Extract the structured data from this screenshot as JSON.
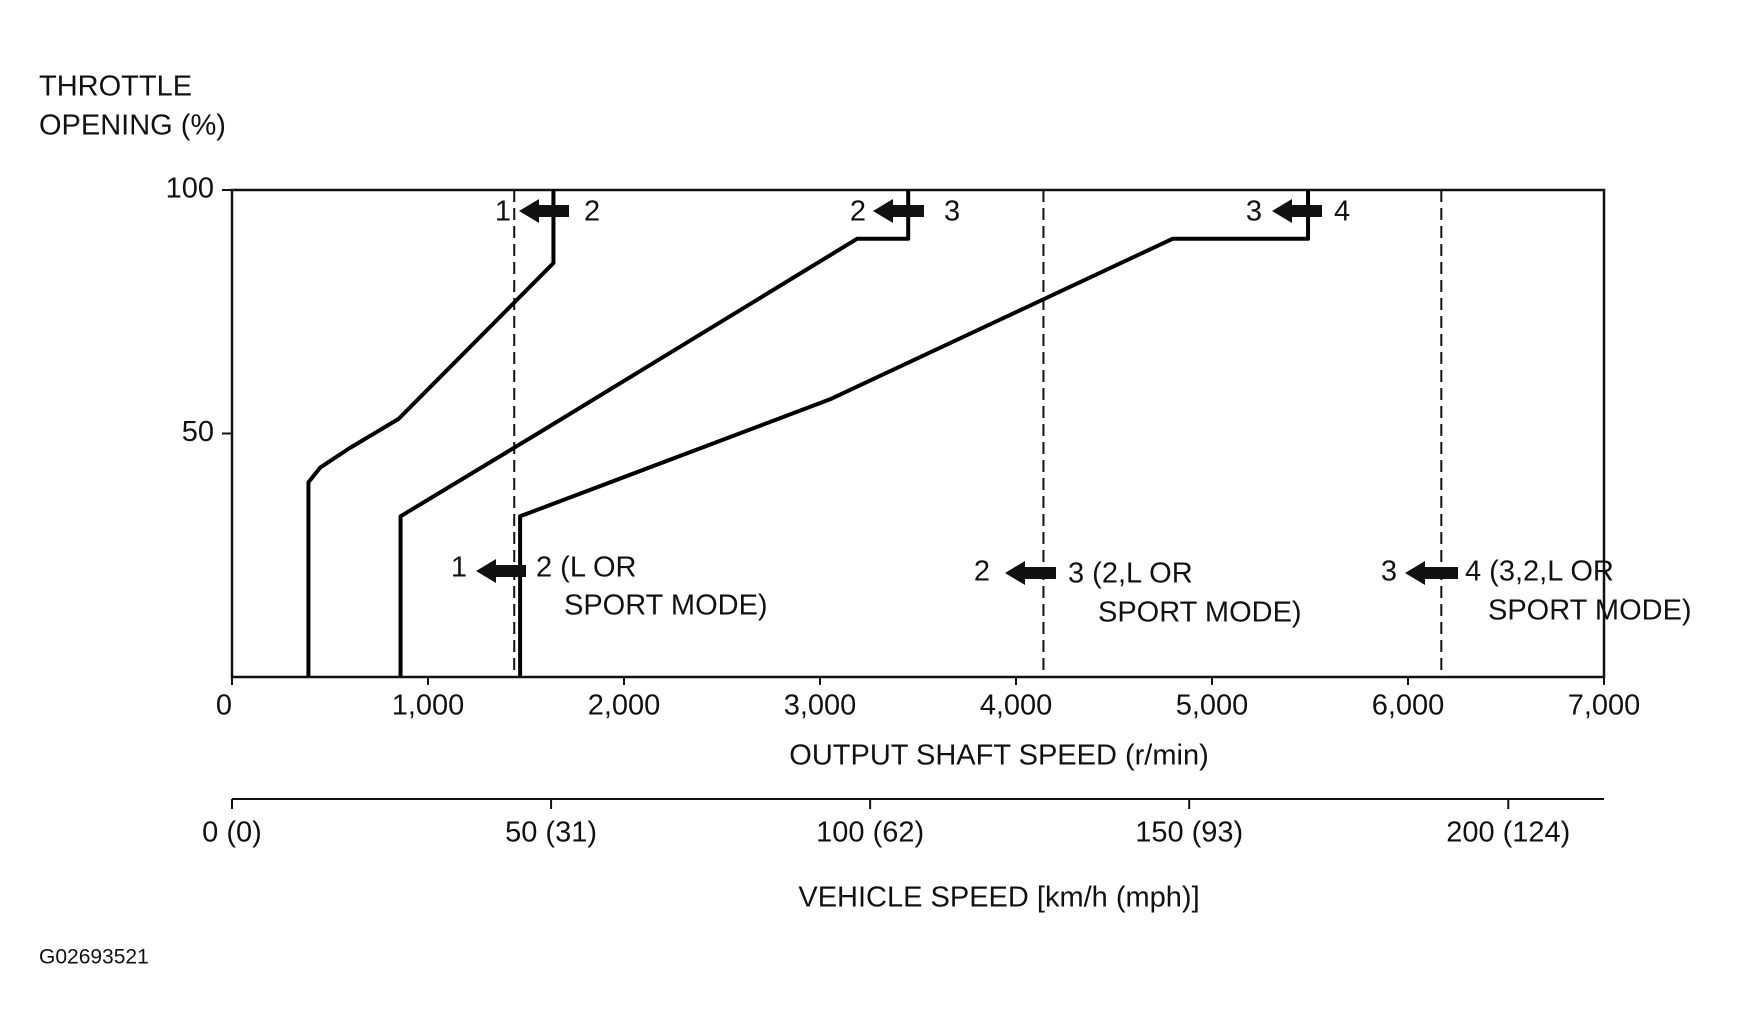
{
  "chart_data": {
    "type": "line",
    "y_label": [
      "THROTTLE",
      "OPENING (%)"
    ],
    "x_label": "OUTPUT SHAFT SPEED (r/min)",
    "x2_label": "VEHICLE SPEED [km/h (mph)]",
    "figure_id": "G02693521",
    "xlim": [
      0,
      7000
    ],
    "xticks": [
      0,
      {
        "value": 1000,
        "label": "1,000"
      },
      {
        "value": 2000,
        "label": "2,000"
      },
      {
        "value": 3000,
        "label": "3,000"
      },
      {
        "value": 4000,
        "label": "4,000"
      },
      {
        "value": 5000,
        "label": "5,000"
      },
      {
        "value": 6000,
        "label": "6,000"
      },
      {
        "value": 7000,
        "label": "7,000"
      }
    ],
    "ylim": [
      0,
      100
    ],
    "yticks": [
      50,
      100
    ],
    "x2lim": [
      0,
      215
    ],
    "x2ticks": [
      {
        "value": 0,
        "label": "0 (0)"
      },
      {
        "value": 50,
        "label": "50 (31)"
      },
      {
        "value": 100,
        "label": "100 (62)"
      },
      {
        "value": 150,
        "label": "150 (93)"
      },
      {
        "value": 200,
        "label": "200 (124)"
      }
    ],
    "series": [
      {
        "color": "#000000",
        "x": [
          390,
          390,
          450,
          600,
          850,
          1640,
          1640
        ],
        "values": [
          0,
          40,
          43,
          47,
          53,
          85,
          100
        ]
      },
      {
        "color": "#000000",
        "x": [
          860,
          860,
          1560,
          3190,
          3450,
          3450
        ],
        "values": [
          0,
          33,
          50,
          90,
          90,
          100
        ]
      },
      {
        "color": "#000000",
        "x": [
          1470,
          1470,
          3050,
          4800,
          5490,
          5490
        ],
        "values": [
          0,
          33,
          57,
          90,
          90,
          100
        ]
      }
    ],
    "reference_lines": [
      1440,
      4140,
      6170
    ],
    "annotations": [
      "1",
      "2",
      "2",
      "3",
      "3",
      "4",
      "1",
      "2 (L OR",
      "SPORT MODE)",
      "2",
      "3 (2,L OR",
      "SPORT MODE)",
      "3",
      "4 (3,2,L OR",
      "SPORT MODE)"
    ]
  }
}
